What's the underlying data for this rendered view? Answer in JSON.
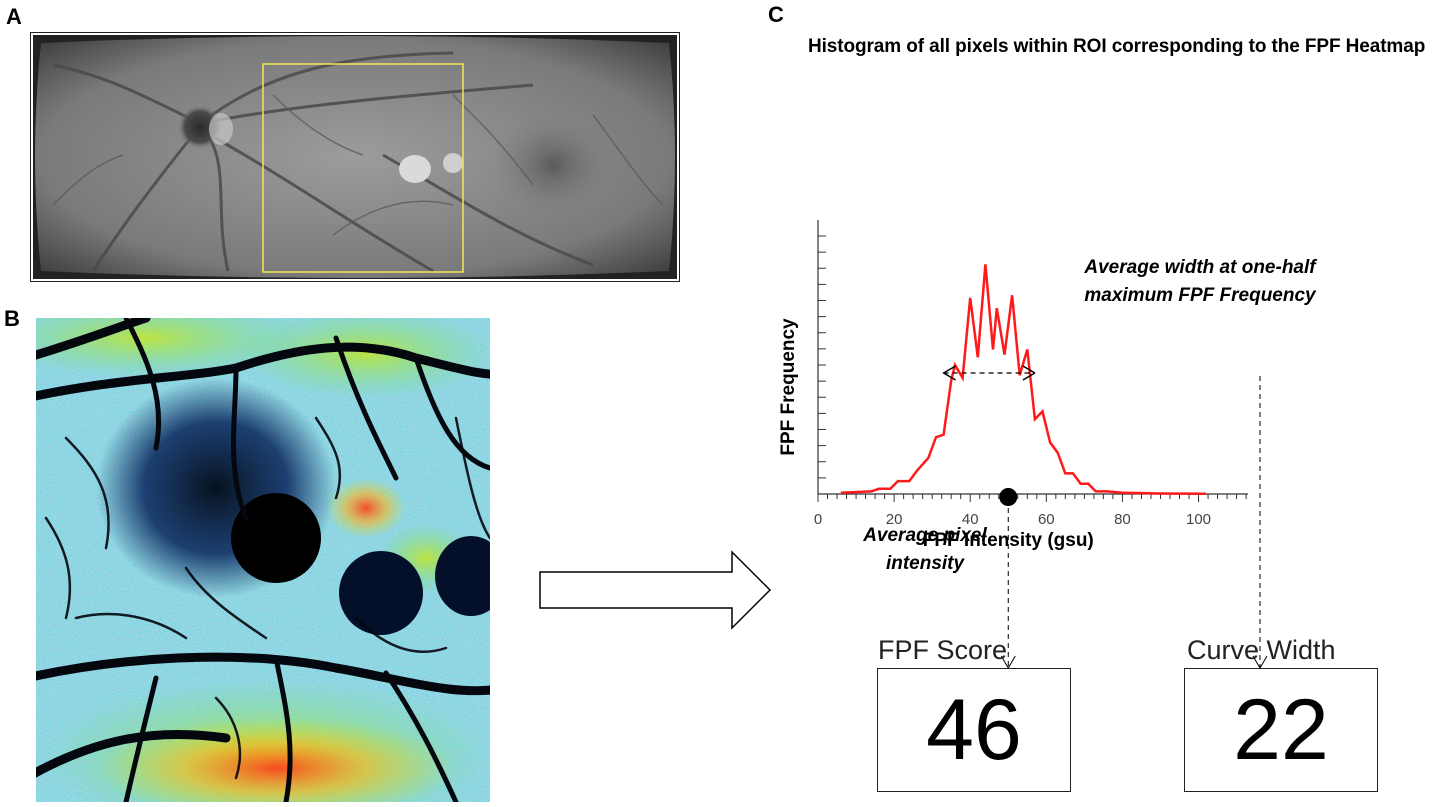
{
  "panels": {
    "a": "A",
    "b": "B",
    "c": "C"
  },
  "histogram": {
    "title": "Histogram of all pixels within ROI corresponding to the FPF Heatmap",
    "note_width_line1": "Average width at one-half",
    "note_width_line2": "maximum FPF Frequency",
    "note_avg_line1": "Average pixel",
    "note_avg_line2": "intensity"
  },
  "chart_data": {
    "type": "line",
    "xlabel": "FPF Intensity (gsu)",
    "ylabel": "FPF Frequency",
    "xlim": [
      0,
      113
    ],
    "ylim": [
      0,
      100
    ],
    "xticks": [
      "0",
      "20",
      "40",
      "60",
      "80",
      "100"
    ],
    "series": [
      {
        "color": "#ff1a1a",
        "x": [
          6,
          14,
          16,
          19,
          21,
          24,
          26,
          29,
          31,
          33,
          35,
          36,
          38,
          40,
          42,
          44,
          46,
          47,
          49,
          51,
          53,
          55,
          57,
          59,
          61,
          63,
          65,
          67,
          69,
          71,
          73,
          76,
          80,
          90,
          102
        ],
        "y": [
          0.5,
          1,
          2,
          2,
          5,
          5,
          9,
          14,
          22,
          23,
          44,
          50,
          45,
          76,
          53,
          89,
          56,
          72,
          54,
          77,
          46,
          56,
          29,
          32,
          20,
          16,
          8,
          8,
          4,
          4,
          1,
          1,
          0.5,
          0.2,
          0.1
        ]
      }
    ],
    "mean_marker_x": 50,
    "half_width_span": [
      33,
      57
    ]
  },
  "scores": {
    "fpf_label": "FPF Score",
    "fpf_value": "46",
    "width_label": "Curve Width",
    "width_value": "22"
  },
  "colors": {
    "curve": "#ff1a1a",
    "roi_box": "#f2ea4a"
  }
}
